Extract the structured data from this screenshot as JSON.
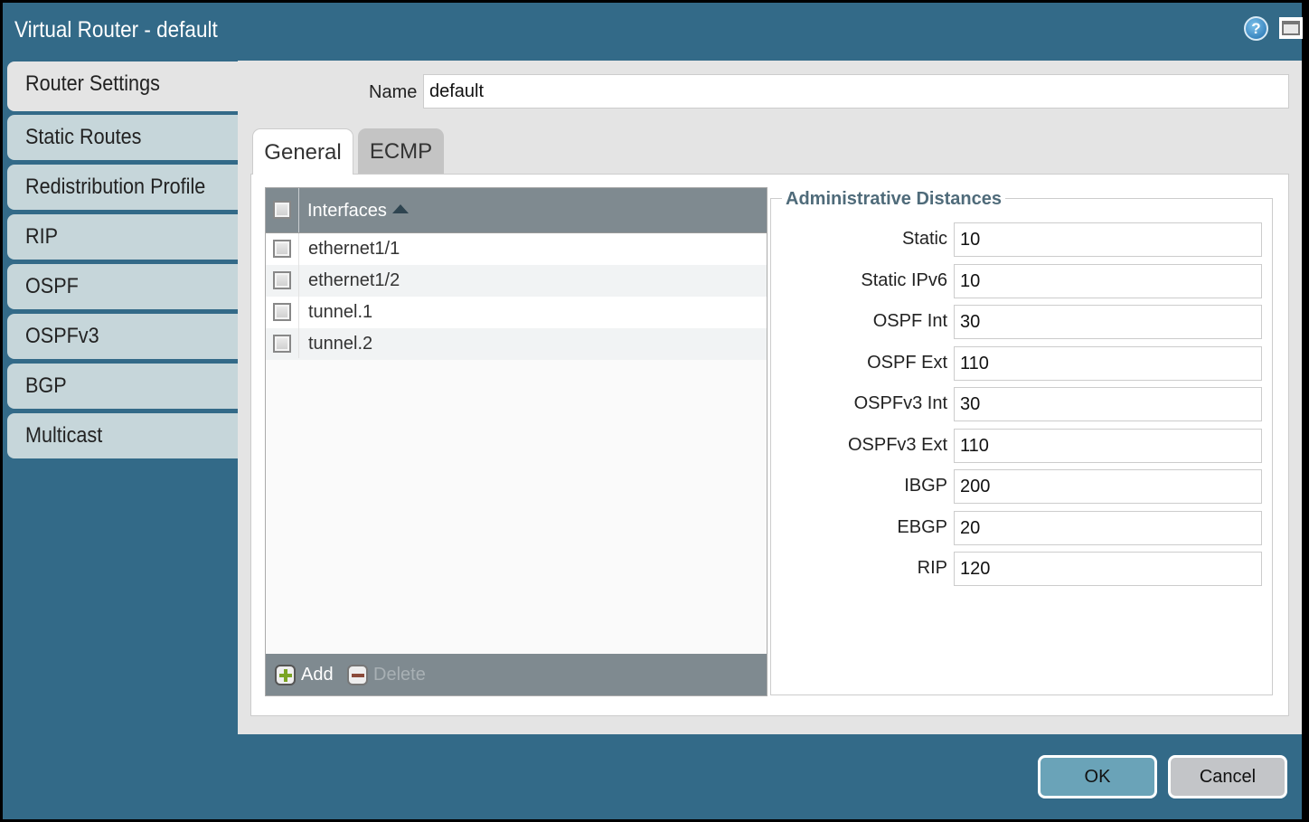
{
  "window": {
    "title": "Virtual Router - default"
  },
  "sidebar": {
    "items": [
      {
        "label": "Router Settings",
        "active": true
      },
      {
        "label": "Static Routes"
      },
      {
        "label": "Redistribution Profile"
      },
      {
        "label": "RIP"
      },
      {
        "label": "OSPF"
      },
      {
        "label": "OSPFv3"
      },
      {
        "label": "BGP"
      },
      {
        "label": "Multicast"
      }
    ]
  },
  "name": {
    "label": "Name",
    "value": "default"
  },
  "tabs": [
    {
      "label": "General",
      "active": true
    },
    {
      "label": "ECMP"
    }
  ],
  "interfaces": {
    "header": "Interfaces",
    "sort": "ascending",
    "rows": [
      "ethernet1/1",
      "ethernet1/2",
      "tunnel.1",
      "tunnel.2"
    ],
    "add_label": "Add",
    "delete_label": "Delete"
  },
  "admin": {
    "title": "Administrative Distances",
    "rows": [
      {
        "label": "Static",
        "value": "10"
      },
      {
        "label": "Static IPv6",
        "value": "10"
      },
      {
        "label": "OSPF Int",
        "value": "30"
      },
      {
        "label": "OSPF Ext",
        "value": "110"
      },
      {
        "label": "OSPFv3 Int",
        "value": "30"
      },
      {
        "label": "OSPFv3 Ext",
        "value": "110"
      },
      {
        "label": "IBGP",
        "value": "200"
      },
      {
        "label": "EBGP",
        "value": "20"
      },
      {
        "label": "RIP",
        "value": "120"
      }
    ]
  },
  "buttons": {
    "ok": "OK",
    "cancel": "Cancel"
  },
  "colors": {
    "titlebar": "#336a88",
    "ok": "#6aa3b8",
    "cancel": "#c3c5c8"
  }
}
